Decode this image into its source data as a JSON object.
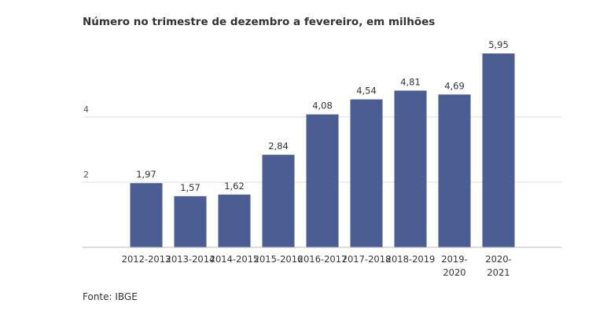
{
  "chart_data": {
    "type": "bar",
    "title": "Número no trimestre de dezembro a fevereiro, em milhões",
    "categories": [
      [
        "2012-2013"
      ],
      [
        "2013-2014"
      ],
      [
        "2014-2015"
      ],
      [
        "2015-2016"
      ],
      [
        "2016-2017"
      ],
      [
        "2017-2018"
      ],
      [
        "2018-2019"
      ],
      [
        "2019-",
        "2020"
      ],
      [
        "2020-",
        "2021"
      ]
    ],
    "values": [
      1.97,
      1.57,
      1.62,
      2.84,
      4.08,
      4.54,
      4.81,
      4.69,
      5.95
    ],
    "value_labels": [
      "1,97",
      "1,57",
      "1,62",
      "2,84",
      "4,08",
      "4,54",
      "4,81",
      "4,69",
      "5,95"
    ],
    "yticks": [
      2,
      4
    ],
    "ylim": [
      0,
      6
    ],
    "xlabel": "",
    "ylabel": "",
    "grid": true,
    "bar_color": "#4a5e93",
    "source": "Fonte: IBGE"
  }
}
